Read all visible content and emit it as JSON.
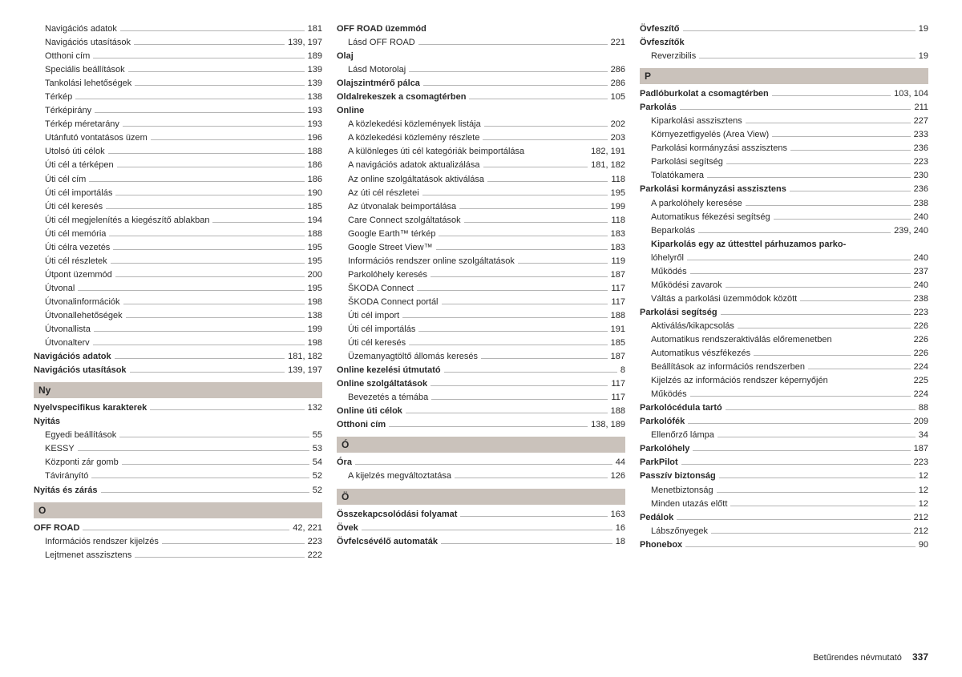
{
  "footer": {
    "title": "Betűrendes névmutató",
    "page": "337"
  },
  "columns": [
    {
      "items": [
        {
          "t": "entry",
          "sub": true,
          "label": "Navigációs adatok",
          "page": "181"
        },
        {
          "t": "entry",
          "sub": true,
          "label": "Navigációs utasítások",
          "page": "139, 197"
        },
        {
          "t": "entry",
          "sub": true,
          "label": "Otthoni cím",
          "page": "189"
        },
        {
          "t": "entry",
          "sub": true,
          "label": "Speciális beállítások",
          "page": "139"
        },
        {
          "t": "entry",
          "sub": true,
          "label": "Tankolási lehetőségek",
          "page": "139"
        },
        {
          "t": "entry",
          "sub": true,
          "label": "Térkép",
          "page": "138"
        },
        {
          "t": "entry",
          "sub": true,
          "label": "Térképirány",
          "page": "193"
        },
        {
          "t": "entry",
          "sub": true,
          "label": "Térkép méretarány",
          "page": "193"
        },
        {
          "t": "entry",
          "sub": true,
          "label": "Utánfutó vontatásos üzem",
          "page": "196"
        },
        {
          "t": "entry",
          "sub": true,
          "label": "Utolsó úti célok",
          "page": "188"
        },
        {
          "t": "entry",
          "sub": true,
          "label": "Úti cél a térképen",
          "page": "186"
        },
        {
          "t": "entry",
          "sub": true,
          "label": "Úti cél cím",
          "page": "186"
        },
        {
          "t": "entry",
          "sub": true,
          "label": "Úti cél importálás",
          "page": "190"
        },
        {
          "t": "entry",
          "sub": true,
          "label": "Úti cél keresés",
          "page": "185"
        },
        {
          "t": "entry",
          "sub": true,
          "label": "Úti cél megjelenítés a kiegészítő ablakban",
          "page": "194"
        },
        {
          "t": "entry",
          "sub": true,
          "label": "Úti cél memória",
          "page": "188"
        },
        {
          "t": "entry",
          "sub": true,
          "label": "Úti célra vezetés",
          "page": "195"
        },
        {
          "t": "entry",
          "sub": true,
          "label": "Úti cél részletek",
          "page": "195"
        },
        {
          "t": "entry",
          "sub": true,
          "label": "Útpont üzemmód",
          "page": "200"
        },
        {
          "t": "entry",
          "sub": true,
          "label": "Útvonal",
          "page": "195"
        },
        {
          "t": "entry",
          "sub": true,
          "label": "Útvonalinformációk",
          "page": "198"
        },
        {
          "t": "entry",
          "sub": true,
          "label": "Útvonallehetőségek",
          "page": "138"
        },
        {
          "t": "entry",
          "sub": true,
          "label": "Útvonallista",
          "page": "199"
        },
        {
          "t": "entry",
          "sub": true,
          "label": "Útvonalterv",
          "page": "198"
        },
        {
          "t": "entry",
          "bold": true,
          "label": "Navigációs adatok",
          "page": "181, 182"
        },
        {
          "t": "entry",
          "bold": true,
          "label": "Navigációs utasítások",
          "page": "139, 197"
        },
        {
          "t": "section",
          "label": "Ny"
        },
        {
          "t": "entry",
          "bold": true,
          "label": "Nyelvspecifikus karakterek",
          "page": "132"
        },
        {
          "t": "heading",
          "label": "Nyitás"
        },
        {
          "t": "entry",
          "sub": true,
          "label": "Egyedi beállítások",
          "page": "55"
        },
        {
          "t": "entry",
          "sub": true,
          "label": "KESSY",
          "page": "53"
        },
        {
          "t": "entry",
          "sub": true,
          "label": "Központi zár gomb",
          "page": "54"
        },
        {
          "t": "entry",
          "sub": true,
          "label": "Távirányító",
          "page": "52"
        },
        {
          "t": "entry",
          "bold": true,
          "label": "Nyitás és zárás",
          "page": "52"
        },
        {
          "t": "section",
          "label": "O"
        },
        {
          "t": "entry",
          "bold": true,
          "label": "OFF ROAD",
          "page": "42, 221"
        },
        {
          "t": "entry",
          "sub": true,
          "label": "Információs rendszer kijelzés",
          "page": "223"
        },
        {
          "t": "entry",
          "sub": true,
          "label": "Lejtmenet asszisztens",
          "page": "222"
        }
      ]
    },
    {
      "items": [
        {
          "t": "heading",
          "label": "OFF ROAD üzemmód"
        },
        {
          "t": "entry",
          "sub": true,
          "label": "Lásd OFF ROAD",
          "page": "221"
        },
        {
          "t": "heading",
          "label": "Olaj"
        },
        {
          "t": "entry",
          "sub": true,
          "label": "Lásd Motorolaj",
          "page": "286"
        },
        {
          "t": "entry",
          "bold": true,
          "label": "Olajszintmérő pálca",
          "page": "286"
        },
        {
          "t": "entry",
          "bold": true,
          "label": "Oldalrekeszek a csomagtérben",
          "page": "105"
        },
        {
          "t": "heading",
          "label": "Online"
        },
        {
          "t": "entry",
          "sub": true,
          "label": "A közlekedési közlemények listája",
          "page": "202"
        },
        {
          "t": "entry",
          "sub": true,
          "label": "A közlekedési közlemény részlete",
          "page": "203"
        },
        {
          "t": "entry",
          "sub": true,
          "nobar": true,
          "label": "A különleges úti cél kategóriák beimportálása",
          "page": "182, 191"
        },
        {
          "t": "entry",
          "sub": true,
          "label": "A navigációs adatok aktualizálása",
          "page": "181, 182"
        },
        {
          "t": "entry",
          "sub": true,
          "label": "Az online szolgáltatások aktiválása",
          "page": "118"
        },
        {
          "t": "entry",
          "sub": true,
          "label": "Az úti cél részletei",
          "page": "195"
        },
        {
          "t": "entry",
          "sub": true,
          "label": "Az útvonalak beimportálása",
          "page": "199"
        },
        {
          "t": "entry",
          "sub": true,
          "label": "Care Connect szolgáltatások",
          "page": "118"
        },
        {
          "t": "entry",
          "sub": true,
          "label": "Google Earth™ térkép",
          "page": "183"
        },
        {
          "t": "entry",
          "sub": true,
          "label": "Google Street View™",
          "page": "183"
        },
        {
          "t": "entry",
          "sub": true,
          "label": "Információs rendszer online szolgáltatások",
          "page": "119"
        },
        {
          "t": "entry",
          "sub": true,
          "label": "Parkolóhely keresés",
          "page": "187"
        },
        {
          "t": "entry",
          "sub": true,
          "label": "ŠKODA Connect",
          "page": "117"
        },
        {
          "t": "entry",
          "sub": true,
          "label": "ŠKODA Connect portál",
          "page": "117"
        },
        {
          "t": "entry",
          "sub": true,
          "label": "Úti cél import",
          "page": "188"
        },
        {
          "t": "entry",
          "sub": true,
          "label": "Úti cél importálás",
          "page": "191"
        },
        {
          "t": "entry",
          "sub": true,
          "label": "Úti cél keresés",
          "page": "185"
        },
        {
          "t": "entry",
          "sub": true,
          "label": "Üzemanyagtöltő állomás keresés",
          "page": "187"
        },
        {
          "t": "entry",
          "bold": true,
          "label": "Online kezelési útmutató",
          "page": "8"
        },
        {
          "t": "entry",
          "bold": true,
          "label": "Online szolgáltatások",
          "page": "117"
        },
        {
          "t": "entry",
          "sub": true,
          "label": "Bevezetés a témába",
          "page": "117"
        },
        {
          "t": "entry",
          "bold": true,
          "label": "Online úti célok",
          "page": "188"
        },
        {
          "t": "entry",
          "bold": true,
          "label": "Otthoni cím",
          "page": "138, 189"
        },
        {
          "t": "section",
          "label": "Ó"
        },
        {
          "t": "entry",
          "bold": true,
          "label": "Óra",
          "page": "44"
        },
        {
          "t": "entry",
          "sub": true,
          "label": "A kijelzés megváltoztatása",
          "page": "126"
        },
        {
          "t": "section",
          "label": "Ö"
        },
        {
          "t": "entry",
          "bold": true,
          "label": "Összekapcsolódási folyamat",
          "page": "163"
        },
        {
          "t": "entry",
          "bold": true,
          "label": "Övek",
          "page": "16"
        },
        {
          "t": "entry",
          "bold": true,
          "label": "Övfelcsévélő automaták",
          "page": "18"
        }
      ]
    },
    {
      "items": [
        {
          "t": "entry",
          "bold": true,
          "label": "Övfeszítő",
          "page": "19"
        },
        {
          "t": "heading",
          "label": "Övfeszítők"
        },
        {
          "t": "entry",
          "sub": true,
          "label": "Reverzibilis",
          "page": "19"
        },
        {
          "t": "section",
          "label": "P"
        },
        {
          "t": "entry",
          "bold": true,
          "label": "Padlóburkolat a csomagtérben",
          "page": "103, 104"
        },
        {
          "t": "entry",
          "bold": true,
          "label": "Parkolás",
          "page": "211"
        },
        {
          "t": "entry",
          "sub": true,
          "label": "Kiparkolási asszisztens",
          "page": "227"
        },
        {
          "t": "entry",
          "sub": true,
          "label": "Környezetfigyelés (Area View)",
          "page": "233"
        },
        {
          "t": "entry",
          "sub": true,
          "label": "Parkolási kormányzási asszisztens",
          "page": "236"
        },
        {
          "t": "entry",
          "sub": true,
          "label": "Parkolási segítség",
          "page": "223"
        },
        {
          "t": "entry",
          "sub": true,
          "label": "Tolatókamera",
          "page": "230"
        },
        {
          "t": "entry",
          "bold": true,
          "label": "Parkolási kormányzási asszisztens",
          "page": "236"
        },
        {
          "t": "entry",
          "sub": true,
          "label": "A parkolóhely keresése",
          "page": "238"
        },
        {
          "t": "entry",
          "sub": true,
          "label": "Automatikus fékezési segítség",
          "page": "240"
        },
        {
          "t": "entry",
          "sub": true,
          "label": "Beparkolás",
          "page": "239, 240"
        },
        {
          "t": "heading",
          "sub": true,
          "label": "Kiparkolás egy az úttesttel párhuzamos parko-"
        },
        {
          "t": "entry",
          "sub": true,
          "label": "  lóhelyről",
          "page": "240"
        },
        {
          "t": "entry",
          "sub": true,
          "label": "Működés",
          "page": "237"
        },
        {
          "t": "entry",
          "sub": true,
          "label": "Működési zavarok",
          "page": "240"
        },
        {
          "t": "entry",
          "sub": true,
          "label": "Váltás a parkolási üzemmódok között",
          "page": "238"
        },
        {
          "t": "entry",
          "bold": true,
          "label": "Parkolási segítség",
          "page": "223"
        },
        {
          "t": "entry",
          "sub": true,
          "label": "Aktiválás/kikapcsolás",
          "page": "226"
        },
        {
          "t": "entry",
          "sub": true,
          "nobar": true,
          "label": "Automatikus rendszeraktiválás előremenetben",
          "page": "226"
        },
        {
          "t": "entry",
          "sub": true,
          "label": "Automatikus vészfékezés",
          "page": "226"
        },
        {
          "t": "entry",
          "sub": true,
          "label": "Beállítások az információs rendszerben",
          "page": "224"
        },
        {
          "t": "entry",
          "sub": true,
          "nobar": true,
          "label": "Kijelzés az információs rendszer képernyőjén",
          "page": "225"
        },
        {
          "t": "entry",
          "sub": true,
          "label": "Működés",
          "page": "224"
        },
        {
          "t": "entry",
          "bold": true,
          "label": "Parkolócédula tartó",
          "page": "88"
        },
        {
          "t": "entry",
          "bold": true,
          "label": "Parkolófék",
          "page": "209"
        },
        {
          "t": "entry",
          "sub": true,
          "label": "Ellenőrző lámpa",
          "page": "34"
        },
        {
          "t": "entry",
          "bold": true,
          "label": "Parkolóhely",
          "page": "187"
        },
        {
          "t": "entry",
          "bold": true,
          "label": "ParkPilot",
          "page": "223"
        },
        {
          "t": "entry",
          "bold": true,
          "label": "Passzív biztonság",
          "page": "12"
        },
        {
          "t": "entry",
          "sub": true,
          "label": "Menetbiztonság",
          "page": "12"
        },
        {
          "t": "entry",
          "sub": true,
          "label": "Minden utazás előtt",
          "page": "12"
        },
        {
          "t": "entry",
          "bold": true,
          "label": "Pedálok",
          "page": "212"
        },
        {
          "t": "entry",
          "sub": true,
          "label": "Lábszőnyegek",
          "page": "212"
        },
        {
          "t": "entry",
          "bold": true,
          "label": "Phonebox",
          "page": "90"
        }
      ]
    }
  ]
}
